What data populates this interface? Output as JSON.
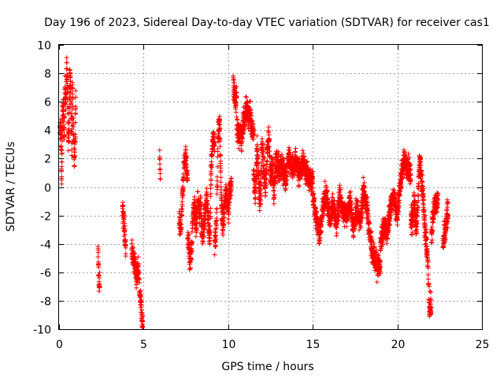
{
  "chart_data": {
    "type": "scatter",
    "title": "Day 196 of 2023, Sidereal Day-to-day VTEC variation (SDTVAR) for receiver cas1",
    "xlabel": "GPS time / hours",
    "ylabel": "SDTVAR / TECUs",
    "xlim": [
      0,
      25
    ],
    "ylim": [
      -10,
      10
    ],
    "xticks": [
      "0",
      "5",
      "10",
      "15",
      "20",
      "25"
    ],
    "yticks": [
      "-10",
      "-8",
      "-6",
      "-4",
      "-2",
      "0",
      "2",
      "4",
      "6",
      "8",
      "10"
    ],
    "grid": true,
    "marker": "+",
    "series": [
      {
        "name": "SDTVAR",
        "color": "#ff0000",
        "segments": [
          {
            "x0": 0.05,
            "x1": 1.0,
            "points": [
              [
                0.05,
                4.2
              ],
              [
                0.1,
                3.8
              ],
              [
                0.15,
                0.3
              ],
              [
                0.2,
                4.5
              ],
              [
                0.25,
                6.0
              ],
              [
                0.3,
                3.5
              ],
              [
                0.35,
                7.2
              ],
              [
                0.4,
                5.5
              ],
              [
                0.45,
                8.6
              ],
              [
                0.5,
                6.8
              ],
              [
                0.55,
                3.0
              ],
              [
                0.6,
                5.0
              ],
              [
                0.65,
                8.3
              ],
              [
                0.7,
                6.2
              ],
              [
                0.75,
                2.6
              ],
              [
                0.8,
                7.4
              ],
              [
                0.85,
                4.5
              ],
              [
                0.9,
                1.6
              ],
              [
                0.95,
                3.2
              ],
              [
                0.98,
                5.8
              ]
            ]
          },
          {
            "x0": 2.3,
            "x1": 2.4,
            "points": [
              [
                2.3,
                -4.5
              ],
              [
                2.33,
                -5.7
              ],
              [
                2.36,
                -6.6
              ],
              [
                2.4,
                -6.9
              ]
            ]
          },
          {
            "x0": 3.75,
            "x1": 3.95,
            "points": [
              [
                3.75,
                -1.5
              ],
              [
                3.8,
                -2.0
              ],
              [
                3.85,
                -2.6
              ],
              [
                3.9,
                -3.4
              ],
              [
                3.93,
                -4.3
              ]
            ]
          },
          {
            "x0": 4.3,
            "x1": 4.95,
            "points": [
              [
                4.3,
                -4.5
              ],
              [
                4.4,
                -5.2
              ],
              [
                4.5,
                -5.8
              ],
              [
                4.6,
                -6.4
              ],
              [
                4.7,
                -5.5
              ],
              [
                4.75,
                -6.9
              ],
              [
                4.8,
                -7.6
              ],
              [
                4.85,
                -8.3
              ],
              [
                4.9,
                -9.5
              ]
            ]
          },
          {
            "x0": 5.95,
            "x1": 6.0,
            "points": [
              [
                5.95,
                2.2
              ],
              [
                5.97,
                1.3
              ],
              [
                6.0,
                0.6
              ]
            ]
          },
          {
            "x0": 7.1,
            "x1": 7.6,
            "points": [
              [
                7.1,
                -2.2
              ],
              [
                7.2,
                -3.1
              ],
              [
                7.3,
                -0.5
              ],
              [
                7.4,
                1.6
              ],
              [
                7.5,
                2.3
              ],
              [
                7.55,
                0.8
              ]
            ]
          },
          {
            "x0": 7.6,
            "x1": 8.4,
            "points": [
              [
                7.6,
                -3.4
              ],
              [
                7.7,
                -4.8
              ],
              [
                7.8,
                -5.3
              ],
              [
                7.9,
                -2.5
              ],
              [
                8.0,
                -1.2
              ],
              [
                8.1,
                -2.8
              ],
              [
                8.2,
                -0.9
              ],
              [
                8.3,
                -1.6
              ]
            ]
          },
          {
            "x0": 8.4,
            "x1": 9.2,
            "points": [
              [
                8.4,
                -2.4
              ],
              [
                8.5,
                -3.6
              ],
              [
                8.6,
                -2.1
              ],
              [
                8.7,
                -0.6
              ],
              [
                8.8,
                -1.8
              ],
              [
                8.9,
                -3.9
              ],
              [
                9.0,
                1.5
              ],
              [
                9.1,
                3.5
              ],
              [
                9.2,
                2.8
              ]
            ]
          },
          {
            "x0": 9.2,
            "x1": 10.2,
            "points": [
              [
                9.2,
                -4.2
              ],
              [
                9.3,
                -2.7
              ],
              [
                9.4,
                3.8
              ],
              [
                9.5,
                4.4
              ],
              [
                9.6,
                -1.4
              ],
              [
                9.7,
                -2.6
              ],
              [
                9.8,
                -0.9
              ],
              [
                9.9,
                -0.4
              ],
              [
                10.0,
                -1.8
              ],
              [
                10.1,
                0.0
              ]
            ]
          },
          {
            "x0": 10.3,
            "x1": 10.5,
            "points": [
              [
                10.3,
                7.4
              ],
              [
                10.4,
                6.2
              ]
            ]
          },
          {
            "x0": 10.5,
            "x1": 11.5,
            "points": [
              [
                10.5,
                4.4
              ],
              [
                10.6,
                3.6
              ],
              [
                10.7,
                4.0
              ],
              [
                10.8,
                3.3
              ],
              [
                10.9,
                4.6
              ],
              [
                11.0,
                5.1
              ],
              [
                11.1,
                5.6
              ],
              [
                11.2,
                4.9
              ],
              [
                11.3,
                5.2
              ],
              [
                11.4,
                3.9
              ]
            ]
          },
          {
            "x0": 11.5,
            "x1": 13.0,
            "points": [
              [
                11.5,
                1.2
              ],
              [
                11.6,
                -0.6
              ],
              [
                11.7,
                2.8
              ],
              [
                11.8,
                0.4
              ],
              [
                11.9,
                -1.3
              ],
              [
                12.0,
                3.2
              ],
              [
                12.1,
                1.6
              ],
              [
                12.2,
                -0.3
              ],
              [
                12.3,
                2.4
              ],
              [
                12.4,
                3.6
              ],
              [
                12.5,
                0.6
              ],
              [
                12.6,
                1.8
              ],
              [
                12.7,
                -0.8
              ],
              [
                12.8,
                2.2
              ],
              [
                12.9,
                1.4
              ]
            ]
          },
          {
            "x0": 13.0,
            "x1": 15.0,
            "points": [
              [
                13.0,
                0.8
              ],
              [
                13.2,
                1.6
              ],
              [
                13.4,
                0.3
              ],
              [
                13.6,
                2.3
              ],
              [
                13.8,
                1.1
              ],
              [
                14.0,
                1.9
              ],
              [
                14.2,
                0.9
              ],
              [
                14.4,
                1.7
              ],
              [
                14.6,
                1.2
              ],
              [
                14.8,
                0.4
              ]
            ]
          },
          {
            "x0": 15.0,
            "x1": 17.0,
            "points": [
              [
                15.0,
                -0.7
              ],
              [
                15.2,
                -2.2
              ],
              [
                15.4,
                -3.3
              ],
              [
                15.6,
                -1.4
              ],
              [
                15.8,
                -0.3
              ],
              [
                16.0,
                -2.6
              ],
              [
                16.2,
                -1.1
              ],
              [
                16.4,
                -2.9
              ],
              [
                16.6,
                -0.6
              ],
              [
                16.8,
                -1.8
              ]
            ]
          },
          {
            "x0": 17.0,
            "x1": 19.0,
            "points": [
              [
                17.0,
                -2.3
              ],
              [
                17.2,
                -0.9
              ],
              [
                17.4,
                -3.0
              ],
              [
                17.6,
                -1.6
              ],
              [
                17.8,
                -2.7
              ],
              [
                18.0,
                -0.2
              ],
              [
                18.2,
                -1.4
              ],
              [
                18.4,
                -3.6
              ],
              [
                18.6,
                -4.8
              ],
              [
                18.8,
                -5.5
              ]
            ]
          },
          {
            "x0": 19.0,
            "x1": 20.8,
            "points": [
              [
                19.0,
                -4.2
              ],
              [
                19.2,
                -2.6
              ],
              [
                19.4,
                -3.4
              ],
              [
                19.6,
                -1.2
              ],
              [
                19.8,
                -0.8
              ],
              [
                20.0,
                -1.9
              ],
              [
                20.2,
                0.6
              ],
              [
                20.4,
                1.9
              ],
              [
                20.6,
                1.4
              ],
              [
                20.8,
                0.9
              ]
            ]
          },
          {
            "x0": 20.8,
            "x1": 22.0,
            "points": [
              [
                20.9,
                -2.3
              ],
              [
                21.0,
                -0.8
              ],
              [
                21.1,
                -3.1
              ],
              [
                21.2,
                -1.6
              ],
              [
                21.3,
                1.9
              ],
              [
                21.4,
                1.1
              ],
              [
                21.5,
                -0.4
              ],
              [
                21.6,
                -2.4
              ],
              [
                21.7,
                -3.8
              ],
              [
                21.8,
                -5.2
              ],
              [
                21.9,
                -8.5
              ]
            ]
          },
          {
            "x0": 22.0,
            "x1": 22.4,
            "points": [
              [
                22.0,
                -3.6
              ],
              [
                22.1,
                -2.2
              ],
              [
                22.2,
                -1.3
              ],
              [
                22.3,
                -1.0
              ]
            ]
          },
          {
            "x0": 22.7,
            "x1": 23.0,
            "points": [
              [
                22.7,
                -4.2
              ],
              [
                22.8,
                -3.1
              ],
              [
                22.9,
                -2.2
              ],
              [
                22.95,
                -1.8
              ]
            ]
          }
        ]
      }
    ]
  }
}
